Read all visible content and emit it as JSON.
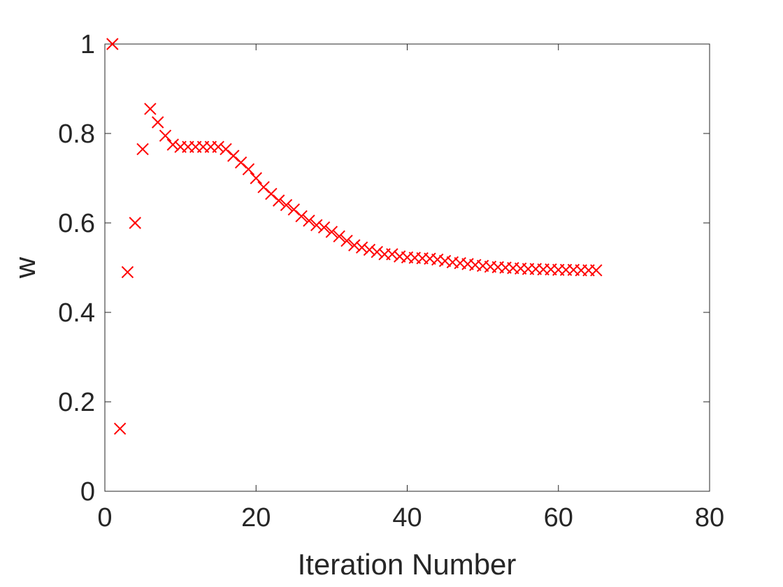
{
  "chart_data": {
    "type": "scatter",
    "xlabel": "Iteration Number",
    "ylabel": "w",
    "xlim": [
      0,
      80
    ],
    "ylim": [
      0,
      1
    ],
    "xticks": [
      0,
      20,
      40,
      60,
      80
    ],
    "yticks": [
      0,
      0.2,
      0.4,
      0.6,
      0.8,
      1
    ],
    "xtick_labels": [
      "0",
      "20",
      "40",
      "60",
      "80"
    ],
    "ytick_labels": [
      "0",
      "0.2",
      "0.4",
      "0.6",
      "0.8",
      "1"
    ],
    "grid": false,
    "marker": "x",
    "marker_color": "#ff0000",
    "series": [
      {
        "x": [
          1,
          2,
          3,
          4,
          5,
          6,
          7,
          8,
          9,
          10,
          11,
          12,
          13,
          14,
          15,
          16,
          17,
          18,
          19,
          20,
          21,
          22,
          23,
          24,
          25,
          26,
          27,
          28,
          29,
          30,
          31,
          32,
          33,
          34,
          35,
          36,
          37,
          38,
          39,
          40,
          41,
          42,
          43,
          44,
          45,
          46,
          47,
          48,
          49,
          50,
          51,
          52,
          53,
          54,
          55,
          56,
          57,
          58,
          59,
          60,
          61,
          62,
          63,
          64,
          65
        ],
        "y": [
          1.0,
          0.14,
          0.49,
          0.6,
          0.765,
          0.855,
          0.825,
          0.795,
          0.775,
          0.77,
          0.77,
          0.77,
          0.77,
          0.77,
          0.77,
          0.765,
          0.75,
          0.735,
          0.72,
          0.7,
          0.68,
          0.665,
          0.65,
          0.64,
          0.63,
          0.615,
          0.605,
          0.595,
          0.59,
          0.58,
          0.57,
          0.56,
          0.55,
          0.545,
          0.54,
          0.535,
          0.53,
          0.53,
          0.525,
          0.523,
          0.522,
          0.521,
          0.52,
          0.518,
          0.515,
          0.512,
          0.51,
          0.508,
          0.506,
          0.504,
          0.502,
          0.501,
          0.5,
          0.499,
          0.498,
          0.497,
          0.497,
          0.496,
          0.496,
          0.495,
          0.495,
          0.495,
          0.494,
          0.494,
          0.494
        ]
      }
    ]
  }
}
